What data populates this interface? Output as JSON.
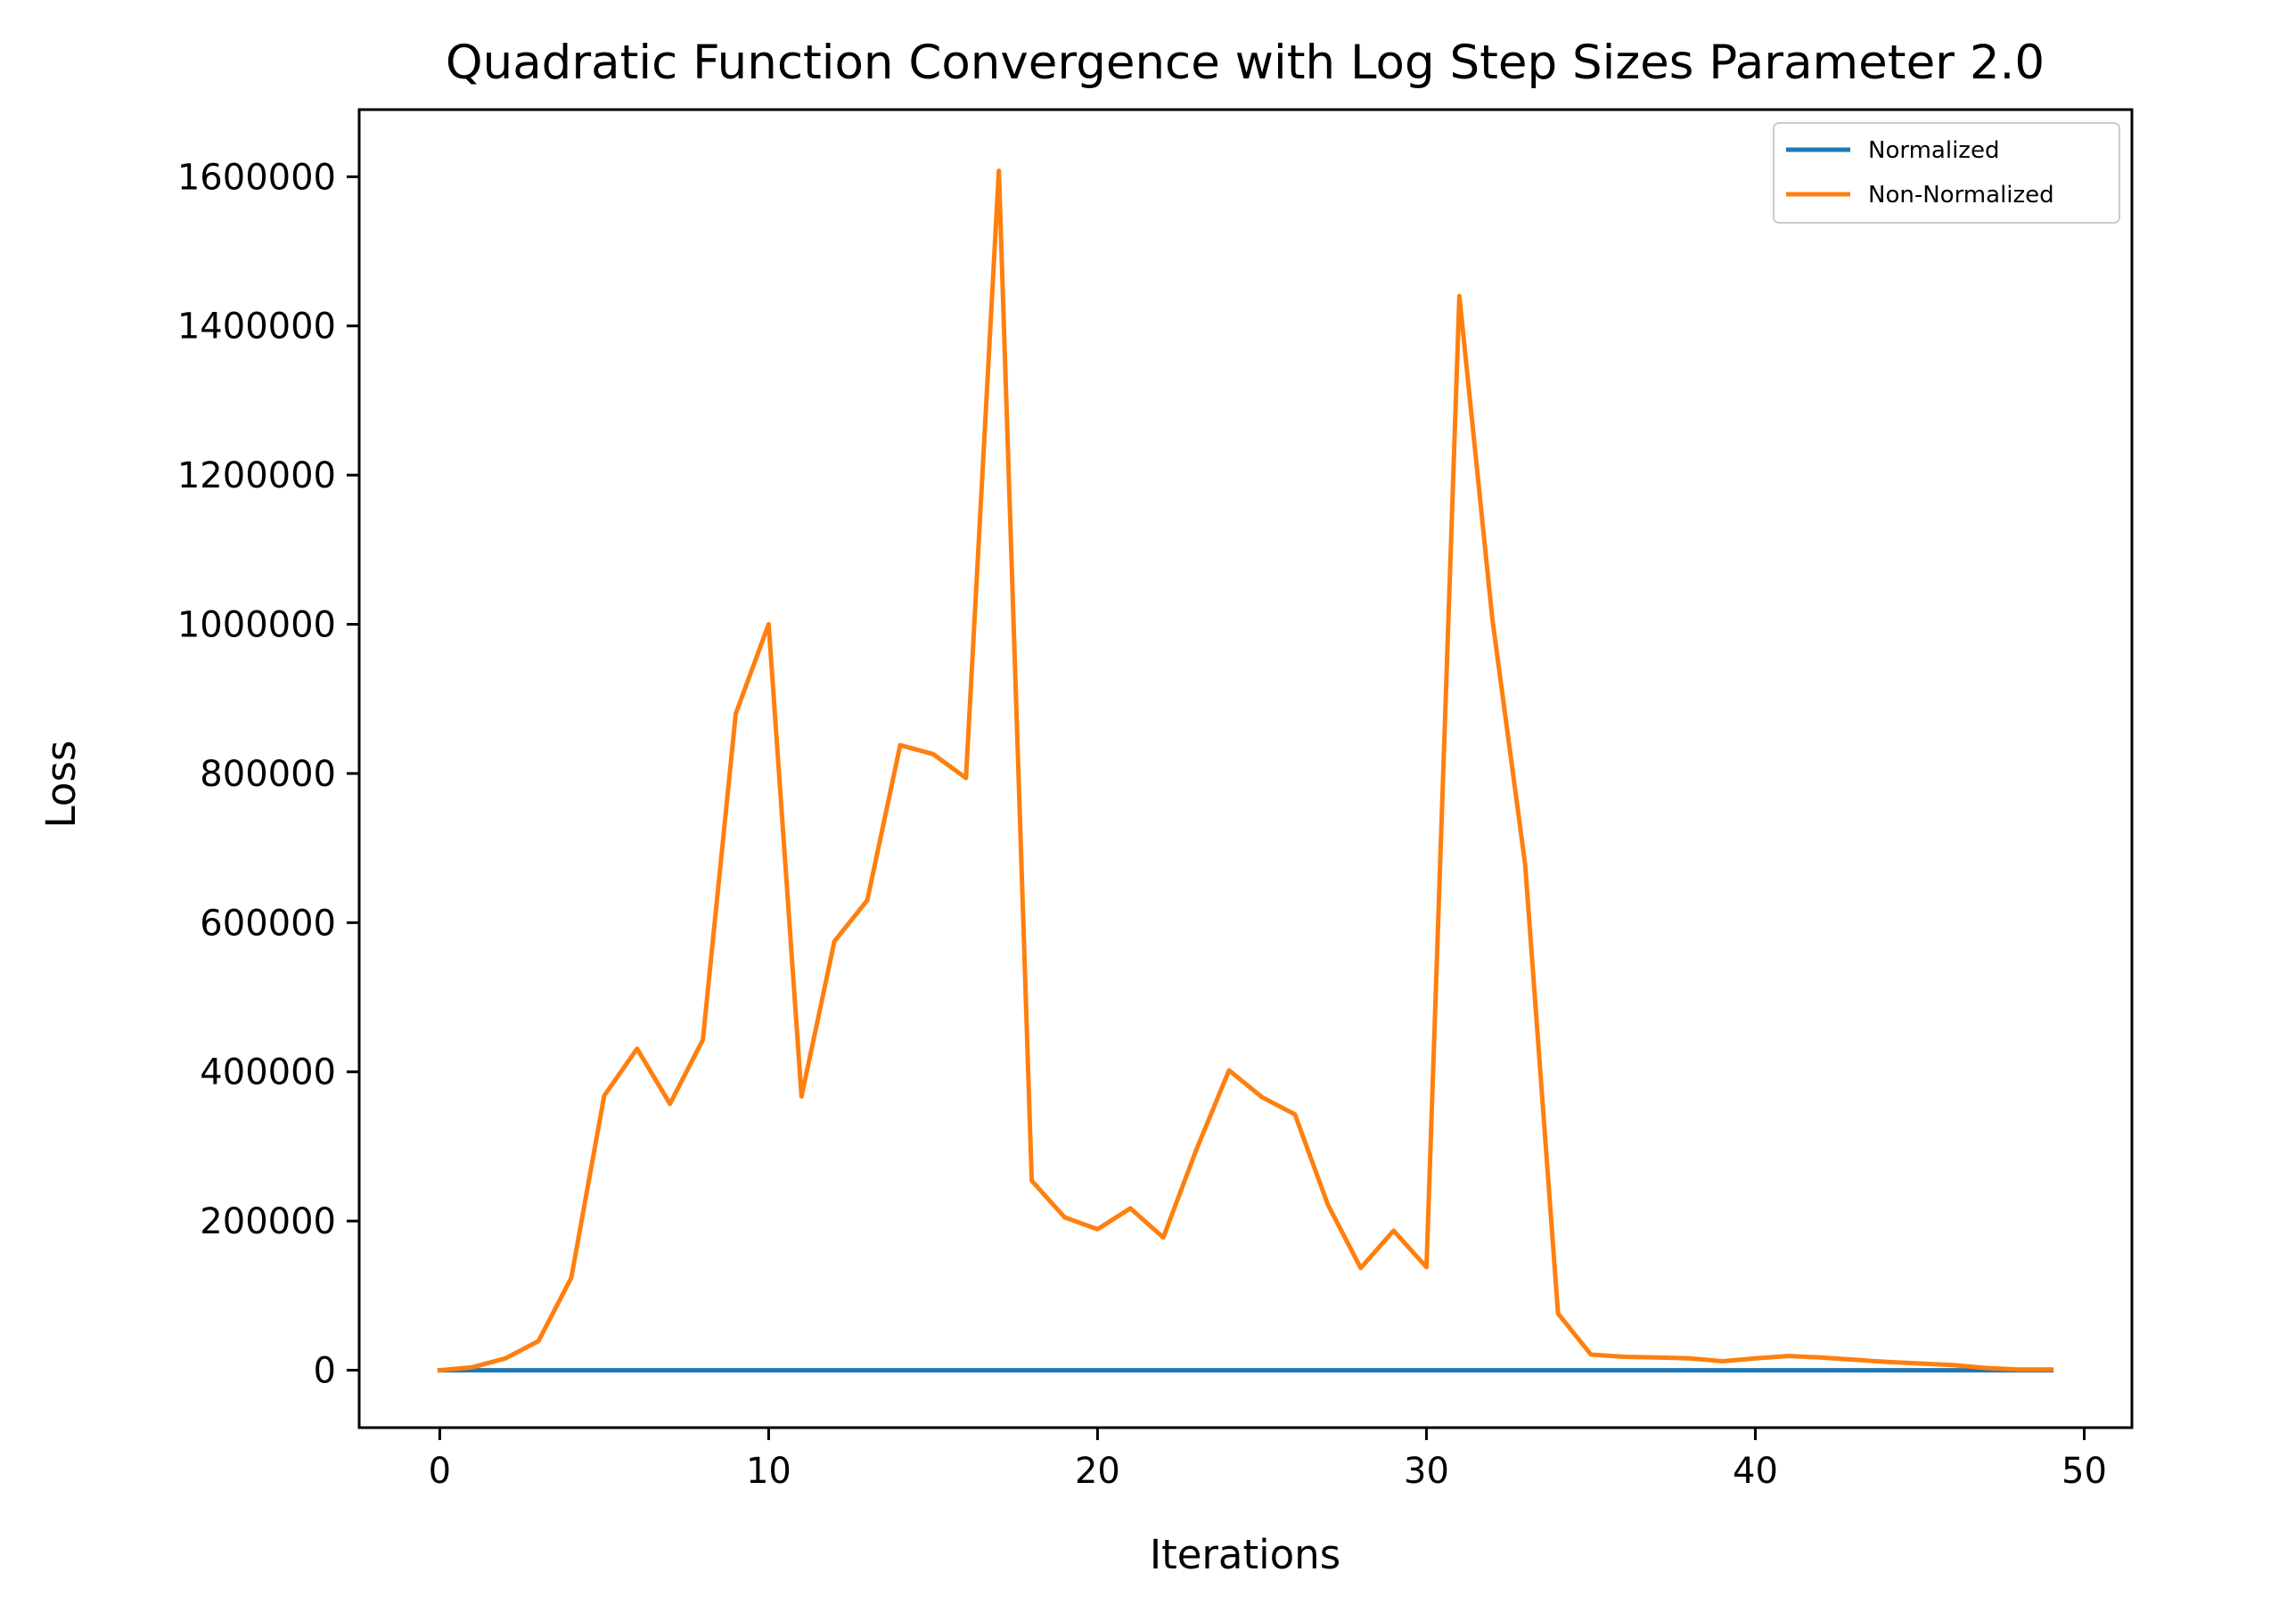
{
  "chart_data": {
    "type": "line",
    "title": "Quadratic Function Convergence with Log Step Sizes Parameter 2.0",
    "xlabel": "Iterations",
    "ylabel": "Loss",
    "xlim": [
      -2.45,
      51.45
    ],
    "ylim": [
      -77000,
      1690000
    ],
    "xticks": [
      0,
      10,
      20,
      30,
      40,
      50
    ],
    "yticks": [
      0,
      200000,
      400000,
      600000,
      800000,
      1000000,
      1200000,
      1400000,
      1600000
    ],
    "grid": false,
    "legend_position": "top-right",
    "x": [
      0,
      1,
      2,
      3,
      4,
      5,
      6,
      7,
      8,
      9,
      10,
      11,
      12,
      13,
      14,
      15,
      16,
      17,
      18,
      19,
      20,
      21,
      22,
      23,
      24,
      25,
      26,
      27,
      28,
      29,
      30,
      31,
      32,
      33,
      34,
      35,
      36,
      37,
      38,
      39,
      40,
      41,
      42,
      43,
      44,
      45,
      46,
      47,
      48,
      49
    ],
    "series": [
      {
        "name": "Normalized",
        "color": "#1f77b4",
        "values": [
          0,
          0,
          0,
          0,
          0,
          0,
          0,
          0,
          0,
          0,
          0,
          0,
          0,
          0,
          0,
          0,
          0,
          0,
          0,
          0,
          0,
          0,
          0,
          0,
          0,
          0,
          0,
          0,
          0,
          0,
          0,
          0,
          0,
          0,
          0,
          0,
          0,
          0,
          0,
          0,
          0,
          0,
          0,
          0,
          0,
          0,
          0,
          0,
          0,
          0
        ]
      },
      {
        "name": "Non-Normalized",
        "color": "#ff7f0e",
        "values": [
          0,
          4000,
          16000,
          39000,
          124000,
          368000,
          431000,
          357000,
          443000,
          880000,
          1000000,
          367000,
          575000,
          630000,
          838000,
          826000,
          794000,
          1608000,
          254000,
          205000,
          189000,
          217000,
          178000,
          295000,
          402000,
          366000,
          343000,
          222000,
          137000,
          187000,
          138000,
          1440000,
          1008000,
          678000,
          76000,
          21000,
          18000,
          17000,
          16000,
          12000,
          16000,
          19000,
          17000,
          14000,
          11000,
          9000,
          7000,
          3000,
          1000,
          1000
        ]
      }
    ]
  }
}
